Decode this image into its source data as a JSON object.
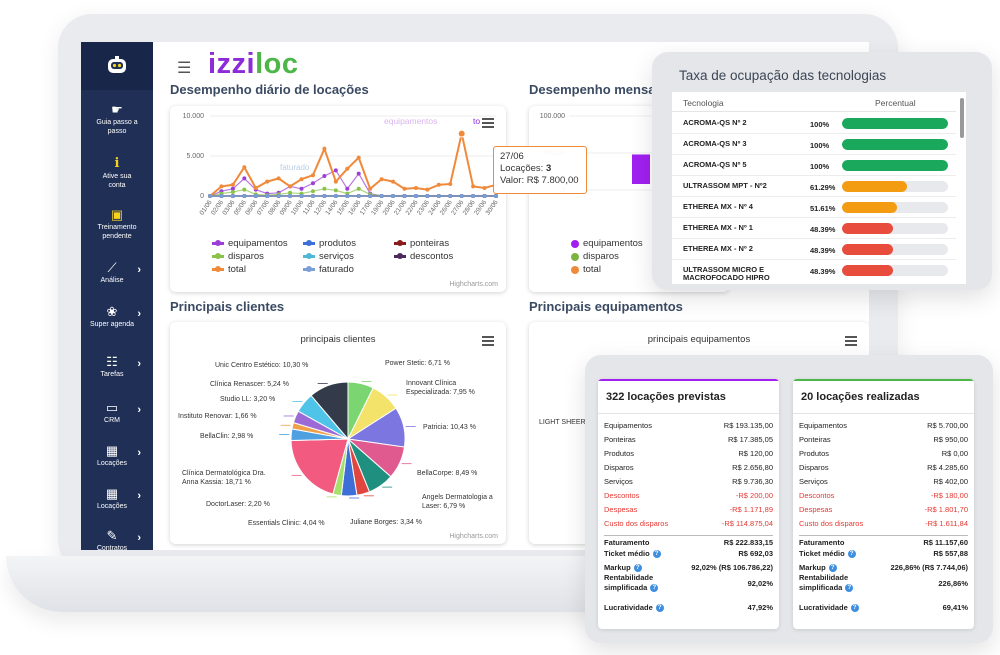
{
  "brand": {
    "part1": "izzi",
    "part2": "loc"
  },
  "sidebar": {
    "items": [
      {
        "icon": "cursor-icon",
        "label": "Guia passo a passo"
      },
      {
        "icon": "info-icon",
        "label": "Ative sua conta"
      },
      {
        "icon": "training-icon",
        "label": "Treinamento pendente"
      },
      {
        "icon": "chart-icon",
        "label": "Análise"
      },
      {
        "icon": "paw-icon",
        "label": "Super agenda"
      },
      {
        "icon": "tasks-icon",
        "label": "Tarefas"
      },
      {
        "icon": "crm-icon",
        "label": "CRM"
      },
      {
        "icon": "calendar-icon",
        "label": "Locações"
      },
      {
        "icon": "calendar-icon",
        "label": "Locações"
      },
      {
        "icon": "contract-icon",
        "label": "Contratos"
      }
    ]
  },
  "sections": {
    "daily": "Desempenho diário de locações",
    "monthly": "Desempenho mensal",
    "clients": "Principais clientes",
    "equipment": "Principais equipamentos"
  },
  "daily_chart": {
    "credit": "Highcharts.com",
    "tooltip": {
      "date": "27/06",
      "count_label": "Locações:",
      "count": "3",
      "value_label": "Valor:",
      "value": "R$ 7.800,00"
    },
    "series_hints": {
      "equip": "equipamentos",
      "fat": "faturado",
      "to": "to"
    }
  },
  "monthly_chart": {
    "legend": [
      "equipamentos",
      "disparos",
      "total"
    ]
  },
  "clients_chart": {
    "title": "principais clientes",
    "credit": "Highcharts.com"
  },
  "equipment_chart": {
    "title": "principais equipamentos",
    "visible_label": "LIGHT SHEER"
  },
  "chart_data": [
    {
      "type": "line",
      "ylim": [
        0,
        10000
      ],
      "yticks": [
        "10.000",
        "5.000",
        "0"
      ],
      "categories": [
        "01/06",
        "02/06",
        "03/06",
        "05/06",
        "06/06",
        "07/06",
        "08/06",
        "09/06",
        "10/06",
        "11/06",
        "12/06",
        "14/06",
        "15/06",
        "16/06",
        "17/06",
        "19/06",
        "20/06",
        "21/06",
        "22/06",
        "23/06",
        "24/06",
        "26/06",
        "27/06",
        "28/06",
        "29/06",
        "30/06"
      ],
      "series": [
        {
          "name": "equipamentos",
          "color": "#9b3fd6",
          "values": [
            0,
            600,
            900,
            2200,
            800,
            300,
            400,
            1200,
            900,
            1600,
            2500,
            3200,
            900,
            2800,
            300,
            0,
            0,
            0,
            0,
            0,
            0,
            0,
            0,
            0,
            0,
            0
          ]
        },
        {
          "name": "produtos",
          "color": "#3e6fd8",
          "values": [
            0,
            0,
            0,
            0,
            0,
            0,
            0,
            0,
            0,
            0,
            0,
            0,
            0,
            0,
            0,
            0,
            0,
            0,
            0,
            0,
            0,
            0,
            0,
            0,
            0,
            0
          ]
        },
        {
          "name": "ponteiras",
          "color": "#8b1a1a",
          "values": [
            0,
            0,
            0,
            0,
            0,
            0,
            0,
            0,
            0,
            0,
            0,
            0,
            0,
            0,
            0,
            0,
            0,
            0,
            0,
            0,
            0,
            0,
            0,
            0,
            0,
            0
          ]
        },
        {
          "name": "disparos",
          "color": "#8bc34a",
          "values": [
            0,
            300,
            500,
            800,
            200,
            100,
            200,
            400,
            300,
            600,
            900,
            700,
            300,
            900,
            200,
            0,
            0,
            0,
            0,
            0,
            0,
            0,
            0,
            0,
            0,
            0
          ]
        },
        {
          "name": "serviços",
          "color": "#4fb8d6",
          "values": [
            0,
            0,
            0,
            0,
            0,
            0,
            0,
            0,
            0,
            0,
            0,
            0,
            0,
            0,
            0,
            0,
            0,
            0,
            0,
            0,
            0,
            0,
            0,
            0,
            0,
            0
          ]
        },
        {
          "name": "descontos",
          "color": "#4a2b5e",
          "values": [
            0,
            0,
            0,
            0,
            0,
            0,
            0,
            0,
            0,
            0,
            0,
            0,
            0,
            0,
            0,
            0,
            0,
            0,
            0,
            0,
            0,
            0,
            0,
            0,
            0,
            0
          ]
        },
        {
          "name": "total",
          "color": "#f08a3b",
          "values": [
            0,
            1200,
            1400,
            3600,
            1000,
            1800,
            2200,
            1200,
            2100,
            2600,
            5900,
            1800,
            3400,
            4800,
            900,
            2100,
            1800,
            900,
            1000,
            800,
            1400,
            1500,
            7800,
            1200,
            1000,
            1400
          ]
        },
        {
          "name": "faturado",
          "color": "#7a9fd6",
          "values": [
            0,
            0,
            0,
            0,
            0,
            0,
            0,
            0,
            0,
            0,
            0,
            0,
            0,
            0,
            0,
            0,
            0,
            0,
            0,
            0,
            0,
            0,
            0,
            0,
            0,
            0
          ]
        }
      ]
    },
    {
      "type": "bar",
      "ylim": [
        0,
        100000
      ],
      "yticks": [
        "100.000",
        "50.000",
        "0"
      ],
      "series": [
        {
          "name": "equipamentos",
          "color": "#a020f0"
        },
        {
          "name": "disparos",
          "color": "#7cb342"
        },
        {
          "name": "total",
          "color": "#f08a3b"
        }
      ]
    },
    {
      "type": "pie",
      "title": "principais clientes",
      "slices": [
        {
          "label": "Power Stetic: 6,71 %",
          "value": 6.71,
          "color": "#7bd672"
        },
        {
          "label": "Innovant Clínica Especializada: 7,95 %",
          "value": 7.95,
          "color": "#f4e36a"
        },
        {
          "label": "Patricia: 10,43 %",
          "value": 10.43,
          "color": "#7b76e0"
        },
        {
          "label": "BellaCorpe: 8,49 %",
          "value": 8.49,
          "color": "#e05a8f"
        },
        {
          "label": "Angels Dermatologia a Laser: 6,79 %",
          "value": 6.79,
          "color": "#1f8f7f"
        },
        {
          "label": "Juliane Borges: 3,34 %",
          "value": 3.34,
          "color": "#e0463f"
        },
        {
          "label": "Essentials Clinic: 4,04 %",
          "value": 4.04,
          "color": "#3e6fd8"
        },
        {
          "label": "DoctorLaser: 2,20 %",
          "value": 2.2,
          "color": "#a4e06a"
        },
        {
          "label": "Clínica Dermatológica Dra. Anna Kassia: 18,71 %",
          "value": 18.71,
          "color": "#f25a7f"
        },
        {
          "label": "BellaClin: 2,98 %",
          "value": 2.98,
          "color": "#4fa0e0"
        },
        {
          "label": "Instituto Renovar: 1,66 %",
          "value": 1.66,
          "color": "#f0a04b"
        },
        {
          "label": "Studio LL: 3,20 %",
          "value": 3.2,
          "color": "#9c6ad6"
        },
        {
          "label": "Clínica Renascer: 5,24 %",
          "value": 5.24,
          "color": "#4fc3e8"
        },
        {
          "label": "Unic Centro Estético: 10,30 %",
          "value": 10.3,
          "color": "#333b4a"
        }
      ]
    }
  ],
  "occupancy": {
    "title": "Taxa de ocupação das tecnologias",
    "col_tech": "Tecnologia",
    "col_pct": "Percentual",
    "rows": [
      {
        "name": "ACROMA-QS Nº 2",
        "pct": "100%",
        "value": 1.0,
        "color": "#1aa85c"
      },
      {
        "name": "ACROMA-QS Nº 3",
        "pct": "100%",
        "value": 1.0,
        "color": "#1aa85c"
      },
      {
        "name": "ACROMA-QS Nº 5",
        "pct": "100%",
        "value": 1.0,
        "color": "#1aa85c"
      },
      {
        "name": "ULTRASSOM MPT - Nº2",
        "pct": "61.29%",
        "value": 0.6129,
        "color": "#f39c12"
      },
      {
        "name": "ETHEREA MX - Nº 4",
        "pct": "51.61%",
        "value": 0.5161,
        "color": "#f39c12"
      },
      {
        "name": "ETHEREA MX - Nº 1",
        "pct": "48.39%",
        "value": 0.4839,
        "color": "#e74c3c"
      },
      {
        "name": "ETHEREA MX - Nº 2",
        "pct": "48.39%",
        "value": 0.4839,
        "color": "#e74c3c"
      },
      {
        "name": "ULTRASSOM MICRO E MACROFOCADO HIPRO",
        "pct": "48.39%",
        "value": 0.4839,
        "color": "#e74c3c"
      }
    ]
  },
  "summary": {
    "planned": {
      "title": "322 locações previstas",
      "accent": "#a020f0",
      "rows": [
        {
          "k": "Equipamentos",
          "v": "R$ 193.135,00"
        },
        {
          "k": "Ponteiras",
          "v": "R$ 17.385,05"
        },
        {
          "k": "Produtos",
          "v": "R$ 120,00"
        },
        {
          "k": "Disparos",
          "v": "R$ 2.656,80"
        },
        {
          "k": "Serviços",
          "v": "R$ 9.736,30"
        },
        {
          "k": "Descontos",
          "v": "-R$ 200,00"
        },
        {
          "k": "Despesas",
          "v": "-R$ 1.171,89"
        },
        {
          "k": "Custo dos disparos",
          "v": "-R$ 114.875,04"
        },
        {
          "k": "Faturamento",
          "v": "R$ 222.833,15"
        },
        {
          "k": "Ticket médio",
          "v": "R$ 692,03"
        },
        {
          "k": "Markup",
          "v": "92,02% (R$ 106.786,22)"
        },
        {
          "k": "Rentabilidade simplificada",
          "v": "92,02%"
        },
        {
          "k": "Lucratividade",
          "v": "47,92%"
        }
      ]
    },
    "done": {
      "title": "20 locações realizadas",
      "accent": "#4cb648",
      "rows": [
        {
          "k": "Equipamentos",
          "v": "R$ 5.700,00"
        },
        {
          "k": "Ponteiras",
          "v": "R$ 950,00"
        },
        {
          "k": "Produtos",
          "v": "R$ 0,00"
        },
        {
          "k": "Disparos",
          "v": "R$ 4.285,60"
        },
        {
          "k": "Serviços",
          "v": "R$ 402,00"
        },
        {
          "k": "Descontos",
          "v": "-R$ 180,00"
        },
        {
          "k": "Despesas",
          "v": "-R$ 1.801,70"
        },
        {
          "k": "Custo dos disparos",
          "v": "-R$ 1.611,84"
        },
        {
          "k": "Faturamento",
          "v": "R$ 11.157,60"
        },
        {
          "k": "Ticket médio",
          "v": "R$ 557,88"
        },
        {
          "k": "Markup",
          "v": "226,86% (R$ 7.744,06)"
        },
        {
          "k": "Rentabilidade simplificada",
          "v": "226,86%"
        },
        {
          "k": "Lucratividade",
          "v": "69,41%"
        }
      ]
    }
  }
}
